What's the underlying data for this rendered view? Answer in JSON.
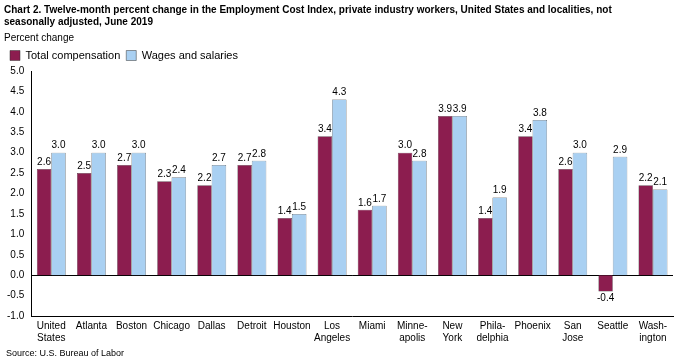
{
  "chart_data": {
    "type": "bar",
    "title": [
      "Chart 2. Twelve-month percent change in the Employment Cost Index, private industry workers, United States and localities, not",
      "seasonally adjusted, June 2019"
    ],
    "y_label": "Percent change",
    "source": "Source: U.S. Bureau of Labor",
    "categories": [
      [
        "United",
        "States"
      ],
      [
        "Atlanta"
      ],
      [
        "Boston"
      ],
      [
        "Chicago"
      ],
      [
        "Dallas"
      ],
      [
        "Detroit"
      ],
      [
        "Houston"
      ],
      [
        "Los",
        "Angeles"
      ],
      [
        "Miami"
      ],
      [
        "Minne-",
        "apolis"
      ],
      [
        "New",
        "York"
      ],
      [
        "Phila-",
        "delphia"
      ],
      [
        "Phoenix"
      ],
      [
        "San",
        "Jose"
      ],
      [
        "Seattle"
      ],
      [
        "Wash-",
        "ington"
      ]
    ],
    "series": [
      {
        "name": "Total compensation",
        "color": "#8c1d4f",
        "values": [
          2.6,
          2.5,
          2.7,
          2.3,
          2.2,
          2.7,
          1.4,
          3.4,
          1.6,
          3.0,
          3.9,
          1.4,
          3.4,
          2.6,
          -0.4,
          2.2
        ],
        "value_labels": [
          "2.6",
          "2.5",
          "2.7",
          "2.3",
          "2.2",
          "2.7",
          "1.4",
          "3.4",
          "1.6",
          "3.0",
          "3.9",
          "1.4",
          "3.4",
          "2.6",
          "-0.4",
          "2.2"
        ]
      },
      {
        "name": "Wages and salaries",
        "color": "#a9d0f2",
        "values": [
          3.0,
          3.0,
          3.0,
          2.4,
          2.7,
          2.8,
          1.5,
          4.3,
          1.7,
          2.8,
          3.9,
          1.9,
          3.8,
          3.0,
          2.9,
          2.1
        ],
        "value_labels": [
          "3.0",
          "3.0",
          "3.0",
          "2.4",
          "2.7",
          "2.8",
          "1.5",
          "4.3",
          "1.7",
          "2.8",
          "3.9",
          "1.9",
          "3.8",
          "3.0",
          "2.9",
          "2.1"
        ]
      }
    ],
    "ylim": [
      -1.0,
      5.0
    ],
    "yticks": [
      {
        "value": -1.0,
        "label": "-1.0"
      },
      {
        "value": -0.5,
        "label": "-0.5"
      },
      {
        "value": 0,
        "label": "0.0"
      },
      {
        "value": 0.5,
        "label": "0.5"
      },
      {
        "value": 1.0,
        "label": "1.0"
      },
      {
        "value": 1.5,
        "label": "1.5"
      },
      {
        "value": 2.0,
        "label": "2.0"
      },
      {
        "value": 2.5,
        "label": "2.5"
      },
      {
        "value": 3.0,
        "label": "3.0"
      },
      {
        "value": 3.5,
        "label": "3.5"
      },
      {
        "value": 4.0,
        "label": "4.0"
      },
      {
        "value": 4.5,
        "label": "4.5"
      },
      {
        "value": 5.0,
        "label": "5.0"
      }
    ],
    "grid": false,
    "legend": "upper left",
    "data_labels": true
  }
}
